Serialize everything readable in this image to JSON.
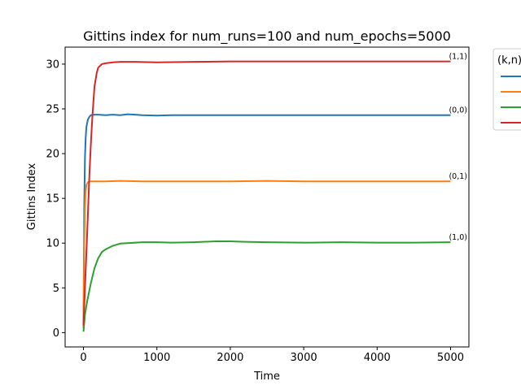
{
  "chart_data": {
    "type": "line",
    "title": "Gittins index for num_runs=100 and num_epochs=5000",
    "xlabel": "Time",
    "ylabel": "Gittins Index",
    "xlim": [
      -250,
      5250
    ],
    "ylim": [
      -1.6,
      31.9
    ],
    "xticks": [
      0,
      1000,
      2000,
      3000,
      4000,
      5000
    ],
    "yticks": [
      0,
      5,
      10,
      15,
      20,
      25,
      30
    ],
    "grid": false,
    "legend": {
      "title": "(k,n)",
      "placement": "outside-right"
    },
    "series": [
      {
        "name": "(0,0)",
        "color": "#1f77b4",
        "end_label": "(0,0)",
        "x": [
          0,
          10,
          20,
          30,
          40,
          60,
          80,
          100,
          150,
          200,
          300,
          400,
          500,
          600,
          700,
          800,
          1000,
          1200,
          1500,
          2000,
          2500,
          3000,
          3500,
          4000,
          4500,
          5000
        ],
        "y": [
          0.5,
          14.0,
          19.5,
          21.8,
          23.0,
          23.8,
          24.1,
          24.3,
          24.35,
          24.35,
          24.3,
          24.35,
          24.3,
          24.4,
          24.35,
          24.3,
          24.25,
          24.3,
          24.3,
          24.3,
          24.3,
          24.3,
          24.3,
          24.3,
          24.3,
          24.3
        ]
      },
      {
        "name": "(0,1)",
        "color": "#ff7f0e",
        "end_label": "(0,1)",
        "x": [
          0,
          10,
          20,
          30,
          40,
          60,
          80,
          100,
          150,
          200,
          300,
          500,
          800,
          1000,
          1500,
          2000,
          2500,
          3000,
          3500,
          4000,
          4500,
          5000
        ],
        "y": [
          0.5,
          9.5,
          14.0,
          15.8,
          16.5,
          16.8,
          16.9,
          16.9,
          16.9,
          16.9,
          16.9,
          16.95,
          16.9,
          16.9,
          16.9,
          16.9,
          16.95,
          16.9,
          16.9,
          16.9,
          16.9,
          16.9
        ]
      },
      {
        "name": "(1,0)",
        "color": "#2ca02c",
        "end_label": "(1,0)",
        "x": [
          0,
          20,
          50,
          100,
          150,
          200,
          250,
          300,
          400,
          500,
          600,
          800,
          1000,
          1200,
          1500,
          1800,
          2000,
          2200,
          2500,
          3000,
          3500,
          4000,
          4500,
          5000
        ],
        "y": [
          0.1,
          2.0,
          3.5,
          5.5,
          7.2,
          8.3,
          9.0,
          9.3,
          9.7,
          9.95,
          10.0,
          10.1,
          10.1,
          10.05,
          10.1,
          10.2,
          10.2,
          10.15,
          10.1,
          10.05,
          10.1,
          10.05,
          10.05,
          10.1
        ]
      },
      {
        "name": "(1,1)",
        "color": "#d62728",
        "end_label": "(1,1)",
        "x": [
          0,
          20,
          50,
          80,
          100,
          120,
          150,
          180,
          200,
          250,
          300,
          400,
          500,
          700,
          1000,
          1500,
          2000,
          2500,
          3000,
          3500,
          4000,
          4500,
          5000
        ],
        "y": [
          0.8,
          5.0,
          11.0,
          17.5,
          21.0,
          24.0,
          27.5,
          29.0,
          29.6,
          30.0,
          30.1,
          30.2,
          30.25,
          30.25,
          30.2,
          30.25,
          30.3,
          30.3,
          30.3,
          30.3,
          30.3,
          30.3,
          30.3
        ]
      }
    ]
  }
}
